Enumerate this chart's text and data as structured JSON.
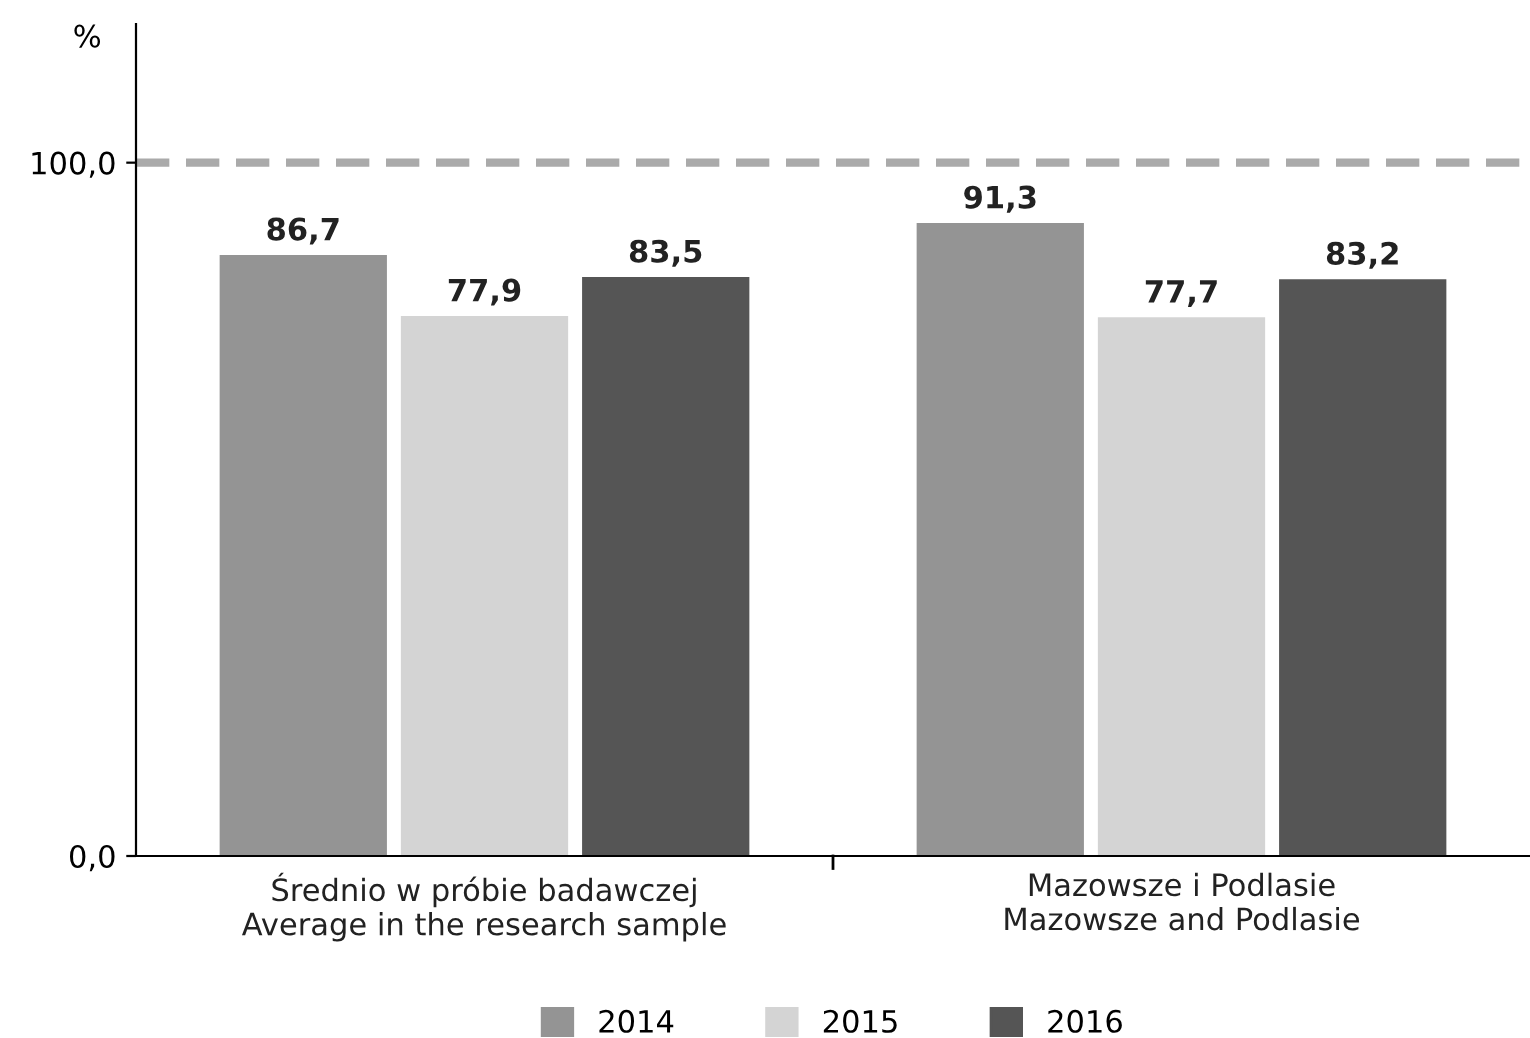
{
  "chart_data": {
    "type": "bar",
    "ylabel": "%",
    "categories": [
      "Średnio w próbie badawczej\nAverage in the research sample",
      "Mazowsze i Podlasie\nMazowsze and Podlasie"
    ],
    "series": [
      {
        "name": "2014",
        "color": "#949494",
        "values": [
          86.7,
          91.3
        ],
        "value_labels": [
          "86,7",
          "91,3"
        ]
      },
      {
        "name": "2015",
        "color": "#d4d4d4",
        "values": [
          77.9,
          77.7
        ],
        "value_labels": [
          "77,9",
          "77,7"
        ]
      },
      {
        "name": "2016",
        "color": "#555555",
        "values": [
          83.5,
          83.2
        ],
        "value_labels": [
          "83,5",
          "83,2"
        ]
      }
    ],
    "ylim": [
      0,
      120
    ],
    "yticks": [
      {
        "value": 0,
        "label": "0,0"
      },
      {
        "value": 100,
        "label": "100,0"
      }
    ],
    "ref_lines": [
      {
        "axis": "y",
        "value": 100,
        "label": null,
        "color": "#aaaaaa",
        "line_style": "dashed"
      }
    ],
    "grid": false,
    "legend": "bottom"
  }
}
